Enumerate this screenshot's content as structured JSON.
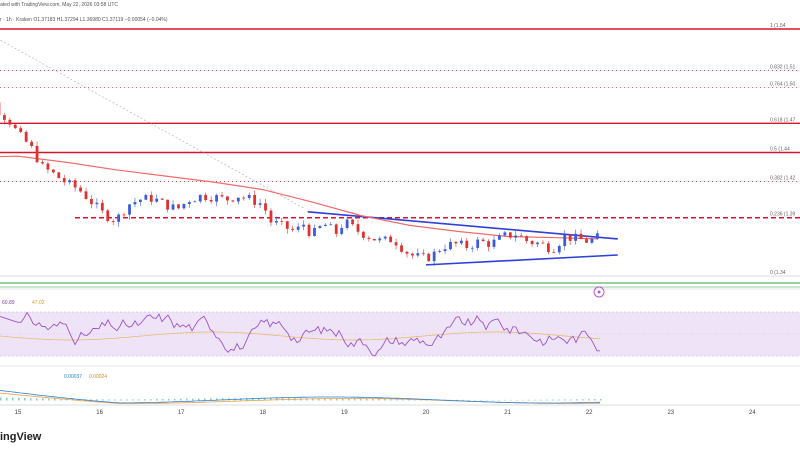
{
  "header": {
    "published": "ated with TradingView.com, May 22, 2026 03:58 UTC",
    "ohlc": "r · 1h · Kraken  O1.37183  H1.37294  L1.36980  C1.37119  −0.00054 (−0.04%)"
  },
  "brand": {
    "text": "ingView"
  },
  "colors": {
    "bull": "#3b5bdb",
    "bear": "#e03131",
    "ema": "#f06a6a",
    "trend": "#2f3fd9",
    "level": "#d6162d",
    "support_line": "#2f9e44",
    "rsi": "#9c55c9",
    "rsi_band": "#efe3f8",
    "macd": "#2b7fd9",
    "signal": "#f0a040"
  },
  "chart_data": [
    {
      "type": "candlestick",
      "x_ticks": [
        "15",
        "16",
        "17",
        "18",
        "19",
        "20",
        "21",
        "22",
        "23",
        "24"
      ],
      "fib_levels": [
        {
          "label": "1 (1.54",
          "ratio": 1
        },
        {
          "label": "0.832 (1.51",
          "ratio": 0.832
        },
        {
          "label": "0.764 (1.50",
          "ratio": 0.764
        },
        {
          "label": "0.618 (1.47",
          "ratio": 0.618
        },
        {
          "label": "0.5 (1.44",
          "ratio": 0.5
        },
        {
          "label": "0.382 (1.42",
          "ratio": 0.382
        },
        {
          "label": "0.236 (1.39",
          "ratio": 0.236
        },
        {
          "label": "0 (1.34",
          "ratio": 0
        }
      ],
      "price_range": [
        1.34,
        1.54
      ],
      "close_path": [
        [
          14.3,
          1.545
        ],
        [
          14.4,
          1.53
        ],
        [
          14.5,
          1.505
        ],
        [
          14.6,
          1.49
        ],
        [
          14.75,
          1.475
        ],
        [
          14.9,
          1.465
        ],
        [
          15.0,
          1.455
        ],
        [
          15.15,
          1.445
        ],
        [
          15.3,
          1.428
        ],
        [
          15.45,
          1.422
        ],
        [
          15.6,
          1.415
        ],
        [
          15.75,
          1.41
        ],
        [
          15.9,
          1.4
        ],
        [
          16.05,
          1.39
        ],
        [
          16.2,
          1.385
        ],
        [
          16.35,
          1.398
        ],
        [
          16.5,
          1.402
        ],
        [
          16.65,
          1.403
        ],
        [
          16.8,
          1.398
        ],
        [
          16.95,
          1.394
        ],
        [
          17.1,
          1.402
        ],
        [
          17.25,
          1.405
        ],
        [
          17.4,
          1.404
        ],
        [
          17.55,
          1.402
        ],
        [
          17.7,
          1.405
        ],
        [
          17.85,
          1.402
        ],
        [
          18.0,
          1.398
        ],
        [
          18.1,
          1.384
        ],
        [
          18.25,
          1.38
        ],
        [
          18.4,
          1.376
        ],
        [
          18.5,
          1.382
        ],
        [
          18.6,
          1.373
        ],
        [
          18.75,
          1.382
        ],
        [
          18.9,
          1.375
        ],
        [
          19.0,
          1.384
        ],
        [
          19.15,
          1.377
        ],
        [
          19.3,
          1.372
        ],
        [
          19.45,
          1.368
        ],
        [
          19.6,
          1.37
        ],
        [
          19.75,
          1.36
        ],
        [
          19.85,
          1.356
        ],
        [
          20.0,
          1.354
        ],
        [
          20.1,
          1.358
        ],
        [
          20.2,
          1.364
        ],
        [
          20.35,
          1.366
        ],
        [
          20.5,
          1.364
        ],
        [
          20.65,
          1.368
        ],
        [
          20.8,
          1.366
        ],
        [
          20.95,
          1.372
        ],
        [
          21.1,
          1.374
        ],
        [
          21.25,
          1.368
        ],
        [
          21.4,
          1.366
        ],
        [
          21.55,
          1.362
        ],
        [
          21.7,
          1.372
        ],
        [
          21.85,
          1.37
        ],
        [
          22.0,
          1.368
        ],
        [
          22.1,
          1.371
        ]
      ],
      "ema_path": [
        [
          14.3,
          1.436
        ],
        [
          15.0,
          1.437
        ],
        [
          15.6,
          1.432
        ],
        [
          16.2,
          1.426
        ],
        [
          16.8,
          1.421
        ],
        [
          17.4,
          1.416
        ],
        [
          18.0,
          1.41
        ],
        [
          18.6,
          1.4
        ],
        [
          19.2,
          1.389
        ],
        [
          19.8,
          1.381
        ],
        [
          20.4,
          1.376
        ],
        [
          21.0,
          1.372
        ],
        [
          21.6,
          1.371
        ],
        [
          22.1,
          1.37
        ]
      ],
      "trendlines": [
        {
          "name": "resistance",
          "from": [
            18.55,
            1.392
          ],
          "to": [
            22.35,
            1.37
          ]
        },
        {
          "name": "support",
          "from": [
            20.0,
            1.349
          ],
          "to": [
            22.35,
            1.357
          ]
        }
      ]
    },
    {
      "type": "line",
      "name": "RSI",
      "labels": [
        "60.89",
        "47.02"
      ],
      "band": [
        30,
        70
      ]
    },
    {
      "type": "line",
      "name": "MACD",
      "labels": [
        "0.00037",
        "0.00024"
      ]
    }
  ]
}
